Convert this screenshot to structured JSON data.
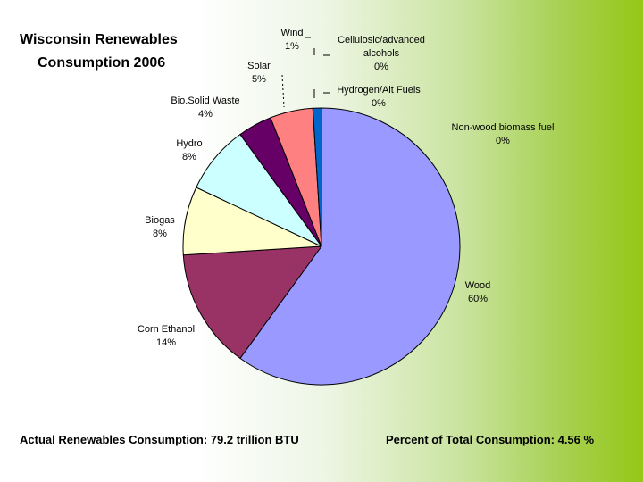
{
  "chart_data": {
    "type": "pie",
    "title": [
      "Wisconsin Renewables",
      "Consumption 2006"
    ],
    "slices": [
      {
        "name": "Wood",
        "value": 60,
        "value_label": "60%",
        "color": "#9999ff"
      },
      {
        "name": "Corn Ethanol",
        "value": 14,
        "value_label": "14%",
        "color": "#993366"
      },
      {
        "name": "Biogas",
        "value": 8,
        "value_label": "8%",
        "color": "#ffffcc"
      },
      {
        "name": "Hydro",
        "value": 8,
        "value_label": "8%",
        "color": "#ccffff"
      },
      {
        "name": "Bio.Solid Waste",
        "value": 4,
        "value_label": "4%",
        "color": "#660066"
      },
      {
        "name": "Solar",
        "value": 5,
        "value_label": "5%",
        "color": "#ff8080"
      },
      {
        "name": "Wind",
        "value": 1,
        "value_label": "1%",
        "color": "#0066cc"
      },
      {
        "name": "Cellulosic/advanced alcohols",
        "value": 0,
        "value_label": "0%",
        "color": "#ccccff"
      },
      {
        "name": "Hydrogen/Alt Fuels",
        "value": 0,
        "value_label": "0%",
        "color": "#000080"
      },
      {
        "name": "Non-wood biomass fuel",
        "value": 0,
        "value_label": "0%",
        "color": "#ff00ff"
      }
    ]
  },
  "footer": {
    "left": "Actual Renewables Consumption: 79.2 trillion BTU",
    "right": "Percent of Total Consumption: 4.56 %"
  }
}
